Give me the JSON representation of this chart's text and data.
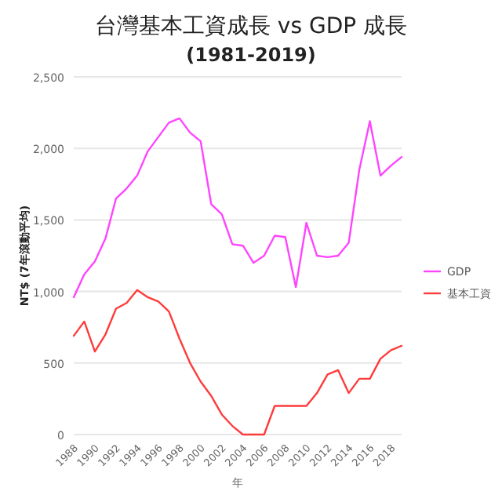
{
  "chart_data": {
    "type": "line",
    "title": "台灣基本工資成長 vs GDP 成長",
    "subtitle": "(1981-2019)",
    "xlabel": "年",
    "ylabel": "NT$ (7年滾動平均)",
    "x": [
      1988,
      1989,
      1990,
      1991,
      1992,
      1993,
      1994,
      1995,
      1996,
      1997,
      1998,
      1999,
      2000,
      2001,
      2002,
      2003,
      2004,
      2005,
      2006,
      2007,
      2008,
      2009,
      2010,
      2011,
      2012,
      2013,
      2014,
      2015,
      2016,
      2017,
      2018,
      2019
    ],
    "series": [
      {
        "name": "GDP",
        "color": "#ff44ff",
        "values": [
          960,
          1120,
          1210,
          1370,
          1650,
          1720,
          1810,
          1980,
          2080,
          2180,
          2210,
          2110,
          2050,
          1610,
          1540,
          1330,
          1320,
          1200,
          1250,
          1390,
          1380,
          1030,
          1480,
          1250,
          1240,
          1250,
          1340,
          1850,
          2190,
          1810,
          1880,
          1940
        ]
      },
      {
        "name": "基本工資",
        "color": "#ff3b3b",
        "values": [
          690,
          790,
          580,
          700,
          880,
          920,
          1010,
          960,
          930,
          860,
          670,
          500,
          370,
          270,
          140,
          60,
          0,
          0,
          0,
          200,
          200,
          200,
          200,
          290,
          420,
          450,
          290,
          390,
          390,
          530,
          590,
          620
        ]
      }
    ],
    "xlim": [
      1988,
      2019
    ],
    "xticks": [
      1988,
      1990,
      1992,
      1994,
      1996,
      1998,
      2000,
      2002,
      2004,
      2006,
      2008,
      2010,
      2012,
      2014,
      2016,
      2018
    ],
    "ylim": [
      0,
      2500
    ],
    "yticks": [
      {
        "value": 0,
        "label": "0"
      },
      {
        "value": 500,
        "label": "500"
      },
      {
        "value": 1000,
        "label": "1,000"
      },
      {
        "value": 1500,
        "label": "1,500"
      },
      {
        "value": 2000,
        "label": "2,000"
      },
      {
        "value": 2500,
        "label": "2,500"
      }
    ],
    "grid": "y",
    "legend": "right",
    "marker": "none",
    "line_style": "solid"
  }
}
